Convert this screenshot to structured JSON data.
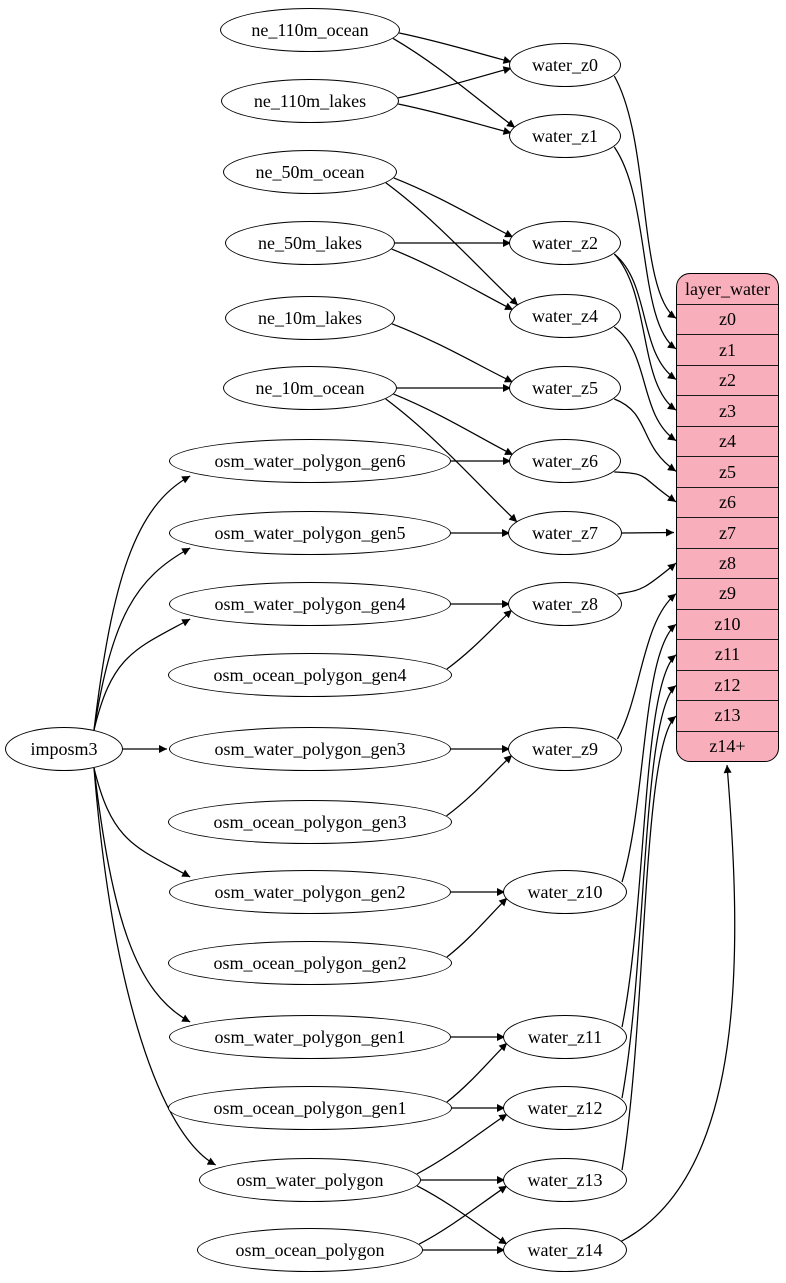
{
  "diagram": {
    "colors": {
      "background": "#ffffff",
      "node_fill": "#ffffff",
      "node_stroke": "#000000",
      "table_fill": "#f9aebc",
      "edge_stroke": "#000000"
    },
    "nodes": {
      "importer": {
        "id": "imposm3",
        "label": "imposm3"
      },
      "source_tables": [
        {
          "id": "ne_110m_ocean",
          "label": "ne_110m_ocean"
        },
        {
          "id": "ne_110m_lakes",
          "label": "ne_110m_lakes"
        },
        {
          "id": "ne_50m_ocean",
          "label": "ne_50m_ocean"
        },
        {
          "id": "ne_50m_lakes",
          "label": "ne_50m_lakes"
        },
        {
          "id": "ne_10m_lakes",
          "label": "ne_10m_lakes"
        },
        {
          "id": "ne_10m_ocean",
          "label": "ne_10m_ocean"
        },
        {
          "id": "osm_water_polygon_gen6",
          "label": "osm_water_polygon_gen6"
        },
        {
          "id": "osm_water_polygon_gen5",
          "label": "osm_water_polygon_gen5"
        },
        {
          "id": "osm_water_polygon_gen4",
          "label": "osm_water_polygon_gen4"
        },
        {
          "id": "osm_ocean_polygon_gen4",
          "label": "osm_ocean_polygon_gen4"
        },
        {
          "id": "osm_water_polygon_gen3",
          "label": "osm_water_polygon_gen3"
        },
        {
          "id": "osm_ocean_polygon_gen3",
          "label": "osm_ocean_polygon_gen3"
        },
        {
          "id": "osm_water_polygon_gen2",
          "label": "osm_water_polygon_gen2"
        },
        {
          "id": "osm_ocean_polygon_gen2",
          "label": "osm_ocean_polygon_gen2"
        },
        {
          "id": "osm_water_polygon_gen1",
          "label": "osm_water_polygon_gen1"
        },
        {
          "id": "osm_ocean_polygon_gen1",
          "label": "osm_ocean_polygon_gen1"
        },
        {
          "id": "osm_water_polygon",
          "label": "osm_water_polygon"
        },
        {
          "id": "osm_ocean_polygon",
          "label": "osm_ocean_polygon"
        }
      ],
      "stage_tables": [
        {
          "id": "water_z0",
          "label": "water_z0"
        },
        {
          "id": "water_z1",
          "label": "water_z1"
        },
        {
          "id": "water_z2",
          "label": "water_z2"
        },
        {
          "id": "water_z4",
          "label": "water_z4"
        },
        {
          "id": "water_z5",
          "label": "water_z5"
        },
        {
          "id": "water_z6",
          "label": "water_z6"
        },
        {
          "id": "water_z7",
          "label": "water_z7"
        },
        {
          "id": "water_z8",
          "label": "water_z8"
        },
        {
          "id": "water_z9",
          "label": "water_z9"
        },
        {
          "id": "water_z10",
          "label": "water_z10"
        },
        {
          "id": "water_z11",
          "label": "water_z11"
        },
        {
          "id": "water_z12",
          "label": "water_z12"
        },
        {
          "id": "water_z13",
          "label": "water_z13"
        },
        {
          "id": "water_z14",
          "label": "water_z14"
        }
      ]
    },
    "table": {
      "id": "layer_water",
      "title": "layer_water",
      "rows": [
        "z0",
        "z1",
        "z2",
        "z3",
        "z4",
        "z5",
        "z6",
        "z7",
        "z8",
        "z9",
        "z10",
        "z11",
        "z12",
        "z13",
        "z14+"
      ]
    },
    "edges": [
      [
        "ne_110m_ocean",
        "water_z0"
      ],
      [
        "ne_110m_lakes",
        "water_z0"
      ],
      [
        "ne_110m_ocean",
        "water_z1"
      ],
      [
        "ne_110m_lakes",
        "water_z1"
      ],
      [
        "ne_50m_ocean",
        "water_z2"
      ],
      [
        "ne_50m_lakes",
        "water_z2"
      ],
      [
        "ne_50m_ocean",
        "water_z4"
      ],
      [
        "ne_50m_lakes",
        "water_z4"
      ],
      [
        "ne_10m_ocean",
        "water_z5"
      ],
      [
        "ne_10m_lakes",
        "water_z5"
      ],
      [
        "ne_10m_ocean",
        "water_z6"
      ],
      [
        "osm_water_polygon_gen6",
        "water_z6"
      ],
      [
        "ne_10m_ocean",
        "water_z7"
      ],
      [
        "osm_water_polygon_gen5",
        "water_z7"
      ],
      [
        "osm_water_polygon_gen4",
        "water_z8"
      ],
      [
        "osm_ocean_polygon_gen4",
        "water_z8"
      ],
      [
        "osm_water_polygon_gen3",
        "water_z9"
      ],
      [
        "osm_ocean_polygon_gen3",
        "water_z9"
      ],
      [
        "osm_water_polygon_gen2",
        "water_z10"
      ],
      [
        "osm_ocean_polygon_gen2",
        "water_z10"
      ],
      [
        "osm_water_polygon_gen1",
        "water_z11"
      ],
      [
        "osm_ocean_polygon_gen1",
        "water_z11"
      ],
      [
        "osm_water_polygon",
        "water_z12"
      ],
      [
        "osm_ocean_polygon_gen1",
        "water_z12"
      ],
      [
        "osm_water_polygon",
        "water_z13"
      ],
      [
        "osm_ocean_polygon",
        "water_z13"
      ],
      [
        "osm_water_polygon",
        "water_z14"
      ],
      [
        "osm_ocean_polygon",
        "water_z14"
      ],
      [
        "imposm3",
        "osm_water_polygon_gen6"
      ],
      [
        "imposm3",
        "osm_water_polygon_gen5"
      ],
      [
        "imposm3",
        "osm_water_polygon_gen4"
      ],
      [
        "imposm3",
        "osm_water_polygon_gen3"
      ],
      [
        "imposm3",
        "osm_water_polygon_gen2"
      ],
      [
        "imposm3",
        "osm_water_polygon_gen1"
      ],
      [
        "imposm3",
        "osm_water_polygon"
      ],
      [
        "water_z0",
        "z0"
      ],
      [
        "water_z1",
        "z1"
      ],
      [
        "water_z2",
        "z2"
      ],
      [
        "water_z2",
        "z3"
      ],
      [
        "water_z4",
        "z4"
      ],
      [
        "water_z5",
        "z5"
      ],
      [
        "water_z6",
        "z6"
      ],
      [
        "water_z7",
        "z7"
      ],
      [
        "water_z8",
        "z8"
      ],
      [
        "water_z9",
        "z9"
      ],
      [
        "water_z10",
        "z10"
      ],
      [
        "water_z11",
        "z11"
      ],
      [
        "water_z12",
        "z12"
      ],
      [
        "water_z13",
        "z13"
      ],
      [
        "water_z14",
        "z14+"
      ]
    ]
  }
}
